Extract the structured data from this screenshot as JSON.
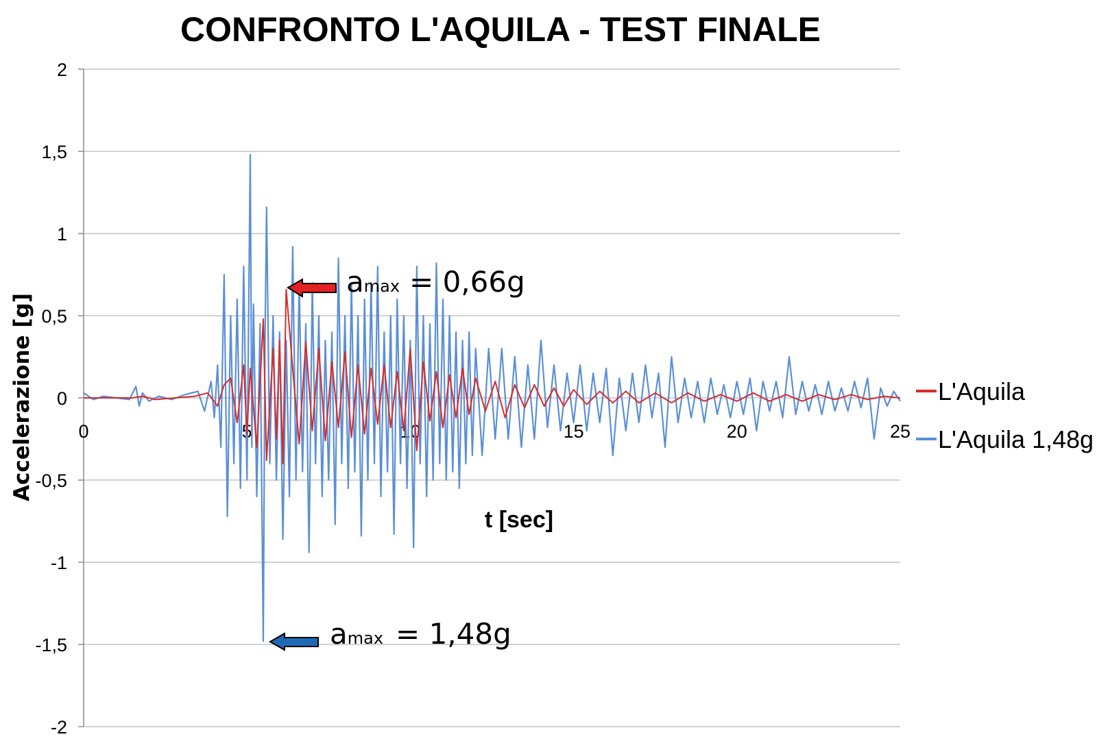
{
  "chart_data": {
    "type": "line",
    "title": "CONFRONTO L'AQUILA - TEST FINALE",
    "xlabel": "t [sec]",
    "ylabel": "Accelerazione [g]",
    "xlim": [
      0,
      25
    ],
    "ylim": [
      -2,
      2
    ],
    "x_ticks": [
      "0",
      "5",
      "10",
      "15",
      "20",
      "25"
    ],
    "y_ticks": [
      "2",
      "1,5",
      "1",
      "0,5",
      "0",
      "-0,5",
      "-1",
      "-1,5",
      "-2"
    ],
    "grid": "horizontal",
    "legend_position": "right",
    "series": [
      {
        "name": "L'Aquila",
        "color": "#d62c2c",
        "peak": {
          "t": 6.2,
          "a": 0.66
        },
        "x": [
          0,
          0.5,
          1,
          1.5,
          1.8,
          2.2,
          2.8,
          3.4,
          3.8,
          4.1,
          4.3,
          4.5,
          4.7,
          4.9,
          5.0,
          5.1,
          5.3,
          5.5,
          5.6,
          5.8,
          5.9,
          6.0,
          6.1,
          6.2,
          6.4,
          6.6,
          6.8,
          7.0,
          7.2,
          7.4,
          7.6,
          7.8,
          8.0,
          8.2,
          8.4,
          8.6,
          8.8,
          9.0,
          9.2,
          9.4,
          9.6,
          9.8,
          10.0,
          10.2,
          10.4,
          10.6,
          10.8,
          11.0,
          11.2,
          11.4,
          11.6,
          11.8,
          12.0,
          12.3,
          12.6,
          12.9,
          13.2,
          13.5,
          13.8,
          14.1,
          14.4,
          14.7,
          15.0,
          15.4,
          15.8,
          16.2,
          16.6,
          17.0,
          17.5,
          18.0,
          18.5,
          19.0,
          19.5,
          20.0,
          20.5,
          21.0,
          21.5,
          22.0,
          22.5,
          23.0,
          23.5,
          24.0,
          24.5,
          25.0
        ],
        "y": [
          0,
          0,
          0,
          0,
          0.01,
          -0.01,
          0,
          0.01,
          0.03,
          -0.05,
          0.08,
          0.12,
          -0.15,
          0.2,
          -0.22,
          0.18,
          -0.3,
          0.48,
          -0.38,
          0.3,
          -0.25,
          0.35,
          -0.4,
          0.66,
          0.18,
          -0.28,
          0.34,
          -0.2,
          0.3,
          -0.26,
          0.22,
          -0.18,
          0.28,
          -0.24,
          0.2,
          -0.22,
          0.18,
          -0.16,
          0.2,
          -0.18,
          0.16,
          -0.2,
          0.3,
          -0.32,
          0.22,
          -0.14,
          0.16,
          -0.18,
          0.14,
          -0.12,
          0.18,
          -0.1,
          0.12,
          -0.08,
          0.1,
          -0.12,
          0.08,
          -0.06,
          0.08,
          -0.05,
          0.06,
          -0.05,
          0.05,
          -0.04,
          0.04,
          -0.03,
          0.04,
          -0.03,
          0.03,
          -0.03,
          0.03,
          -0.02,
          0.02,
          -0.02,
          0.03,
          -0.02,
          0.02,
          -0.02,
          0.02,
          -0.01,
          0.02,
          -0.01,
          0.01,
          0
        ]
      },
      {
        "name": "L'Aquila 1,48g",
        "color": "#5b8fd6",
        "peak": {
          "t": 5.5,
          "a": -1.48
        },
        "x": [
          0,
          0.3,
          0.6,
          1.0,
          1.4,
          1.6,
          1.7,
          1.8,
          2.0,
          2.3,
          2.7,
          3.1,
          3.5,
          3.7,
          3.9,
          4.0,
          4.1,
          4.2,
          4.3,
          4.4,
          4.5,
          4.6,
          4.7,
          4.8,
          4.9,
          5.0,
          5.1,
          5.15,
          5.2,
          5.3,
          5.4,
          5.5,
          5.55,
          5.6,
          5.7,
          5.8,
          5.9,
          6.0,
          6.1,
          6.2,
          6.3,
          6.4,
          6.5,
          6.6,
          6.7,
          6.8,
          6.9,
          7.0,
          7.1,
          7.2,
          7.3,
          7.4,
          7.5,
          7.6,
          7.7,
          7.8,
          7.9,
          8.0,
          8.1,
          8.2,
          8.3,
          8.4,
          8.5,
          8.6,
          8.7,
          8.8,
          8.9,
          9.0,
          9.1,
          9.2,
          9.3,
          9.4,
          9.5,
          9.6,
          9.7,
          9.8,
          9.9,
          10.0,
          10.1,
          10.2,
          10.3,
          10.4,
          10.5,
          10.6,
          10.7,
          10.8,
          10.9,
          11.0,
          11.1,
          11.2,
          11.3,
          11.4,
          11.5,
          11.6,
          11.7,
          11.8,
          11.9,
          12.0,
          12.2,
          12.4,
          12.6,
          12.8,
          13.0,
          13.2,
          13.4,
          13.6,
          13.8,
          14.0,
          14.2,
          14.4,
          14.6,
          14.8,
          15.0,
          15.2,
          15.4,
          15.6,
          15.8,
          16.0,
          16.2,
          16.4,
          16.6,
          16.8,
          17.0,
          17.2,
          17.4,
          17.6,
          17.8,
          18.0,
          18.2,
          18.4,
          18.6,
          18.8,
          19.0,
          19.2,
          19.4,
          19.6,
          19.8,
          20.0,
          20.2,
          20.4,
          20.6,
          20.8,
          21.0,
          21.2,
          21.4,
          21.6,
          21.8,
          22.0,
          22.2,
          22.4,
          22.6,
          22.8,
          23.0,
          23.2,
          23.4,
          23.6,
          23.8,
          24.0,
          24.2,
          24.4,
          24.6,
          24.8,
          25.0
        ],
        "y": [
          0.03,
          -0.01,
          0.01,
          0,
          -0.01,
          0.07,
          -0.05,
          0.03,
          -0.02,
          0.01,
          -0.01,
          0.02,
          0.04,
          -0.08,
          0.1,
          -0.12,
          0.2,
          -0.3,
          0.75,
          -0.72,
          0.5,
          -0.4,
          0.6,
          -0.55,
          0.8,
          -0.5,
          1.48,
          -0.3,
          0.57,
          -0.6,
          0.45,
          -1.48,
          0.3,
          1.16,
          -0.4,
          0.5,
          -0.5,
          0.4,
          -0.86,
          0.35,
          -0.6,
          0.92,
          -0.5,
          0.7,
          -0.45,
          0.45,
          -0.94,
          0.7,
          -0.4,
          0.5,
          -0.6,
          0.35,
          -0.5,
          0.4,
          -0.77,
          0.85,
          -0.4,
          0.5,
          -0.55,
          0.7,
          -0.45,
          0.5,
          -0.84,
          0.6,
          -0.5,
          0.7,
          -0.4,
          0.8,
          -0.6,
          0.4,
          -0.45,
          0.5,
          -0.83,
          0.6,
          -0.4,
          0.5,
          -0.55,
          0.35,
          -0.91,
          0.8,
          -0.4,
          0.5,
          -0.6,
          0.45,
          -0.5,
          0.82,
          -0.4,
          0.6,
          -0.5,
          0.5,
          -0.45,
          0.4,
          -0.55,
          0.35,
          -0.4,
          0.4,
          -0.35,
          0.3,
          -0.35,
          0.3,
          -0.25,
          0.3,
          -0.25,
          0.25,
          -0.3,
          0.2,
          -0.25,
          0.35,
          -0.18,
          0.2,
          -0.2,
          0.15,
          -0.15,
          0.2,
          -0.2,
          0.15,
          -0.15,
          0.18,
          -0.35,
          0.12,
          -0.2,
          0.15,
          -0.15,
          0.2,
          -0.12,
          0.15,
          -0.3,
          0.25,
          -0.15,
          0.12,
          -0.12,
          0.1,
          -0.15,
          0.12,
          -0.1,
          0.08,
          -0.12,
          0.1,
          -0.1,
          0.12,
          -0.2,
          0.1,
          -0.08,
          0.1,
          -0.12,
          0.25,
          -0.1,
          0.1,
          -0.08,
          0.08,
          -0.1,
          0.1,
          -0.08,
          0.06,
          -0.08,
          0.1,
          -0.06,
          0.12,
          -0.25,
          0.06,
          -0.05,
          0.04,
          -0.02
        ]
      }
    ],
    "annotations": [
      {
        "main": "a",
        "sub": "max",
        "value": "= 0,66g",
        "color": "#e32222"
      },
      {
        "main": "a",
        "sub": "max",
        "value": "= 1,48g",
        "color": "#1f6ab5"
      }
    ]
  }
}
